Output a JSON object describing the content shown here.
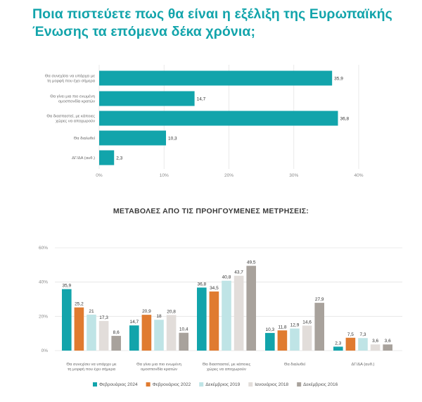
{
  "header": {
    "title_line1": "Ποια πιστεύετε πως θα είναι η εξέλιξη της Ευρωπαϊκής",
    "title_line2": "Ένωσης τα επόμενα δέκα χρόνια;"
  },
  "chart_data": [
    {
      "type": "bar",
      "orientation": "horizontal",
      "categories": [
        [
          "Θα συνεχίσει να υπάρχει με",
          "τη μορφή που έχει σήμερα"
        ],
        [
          "Θα γίνει μια πιο ενωμένη",
          "ομοσπονδία κρατών"
        ],
        [
          "Θα διασπαστεί, με κάποιες",
          "χώρες να αποχωρούν"
        ],
        [
          "Θα διαλυθεί"
        ],
        [
          "ΔΓ/ΔΑ (αυθ.)"
        ]
      ],
      "values": [
        35.9,
        14.7,
        36.8,
        10.3,
        2.3
      ],
      "value_labels": [
        "35,9",
        "14,7",
        "36,8",
        "10,3",
        "2,3"
      ],
      "xlim": [
        0,
        40
      ],
      "ticks": [
        0,
        10,
        20,
        30,
        40
      ],
      "tick_labels": [
        "0%",
        "10%",
        "20%",
        "30%",
        "40%"
      ],
      "color": "#12a4ab",
      "grid": true
    },
    {
      "type": "bar",
      "orientation": "vertical",
      "title": "ΜΕΤΑΒΟΛΕΣ ΑΠΟ ΤΙΣ ΠΡΟΗΓΟΥΜΕΝΕΣ ΜΕΤΡΗΣΕΙΣ:",
      "categories": [
        [
          "Θα συνεχίσει να υπάρχει με",
          "τη μορφή που έχει σήμερα"
        ],
        [
          "Θα γίνει μια πιο ενωμένη",
          "ομοσπονδία κρατών"
        ],
        [
          "Θα διασπαστεί, με κάποιες",
          "χώρες να αποχωρούν"
        ],
        [
          "Θα διαλυθεί"
        ],
        [
          "ΔΓ/ΔΑ (αυθ.)"
        ]
      ],
      "series": [
        {
          "name": "Φεβρουάριος 2024",
          "color": "#12a4ab",
          "values": [
            35.9,
            14.7,
            36.8,
            10.3,
            2.3
          ],
          "labels": [
            "35,9",
            "14,7",
            "36,8",
            "10,3",
            "2,3"
          ]
        },
        {
          "name": "Φεβρουάριος 2022",
          "color": "#e07b30",
          "values": [
            25.2,
            20.9,
            34.5,
            11.8,
            7.5
          ],
          "labels": [
            "25,2",
            "20,9",
            "34,5",
            "11,8",
            "7,5"
          ]
        },
        {
          "name": "Δεκέμβριος 2019",
          "color": "#bfe4e6",
          "values": [
            21,
            18,
            40.8,
            12.9,
            7.3
          ],
          "labels": [
            "21",
            "18",
            "40,8",
            "12,9",
            "7,3"
          ]
        },
        {
          "name": "Ιανουάριος 2018",
          "color": "#e2ddda",
          "values": [
            17.3,
            20.8,
            43.7,
            14.6,
            3.6
          ],
          "labels": [
            "17,3",
            "20,8",
            "43,7",
            "14,6",
            "3,6"
          ]
        },
        {
          "name": "Δεκέμβριος 2016",
          "color": "#a8a29c",
          "values": [
            8.6,
            10.4,
            49.5,
            27.9,
            3.6
          ],
          "labels": [
            "8,6",
            "10,4",
            "49,5",
            "27,9",
            "3,6"
          ]
        }
      ],
      "ylim": [
        0,
        60
      ],
      "ticks": [
        0,
        20,
        40,
        60
      ],
      "tick_labels": [
        "0%",
        "20%",
        "40%",
        "60%"
      ],
      "grid": true,
      "legend_position": "bottom"
    }
  ]
}
